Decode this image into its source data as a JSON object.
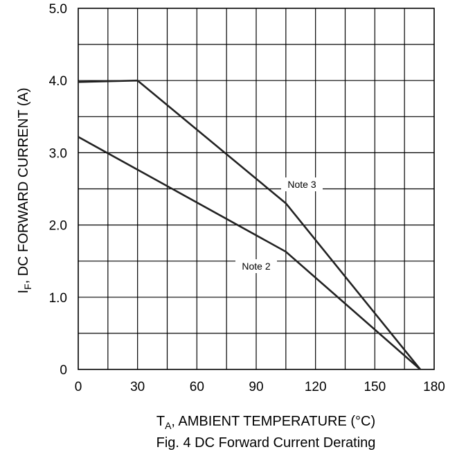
{
  "chart_data": {
    "type": "line",
    "title": "",
    "xlabel": "T_A, AMBIENT  TEMPERATURE (°C)",
    "ylabel": "I_F, DC FORWARD CURRENT (A)",
    "xlim": [
      0,
      180
    ],
    "ylim": [
      0,
      5
    ],
    "x_ticks": [
      0,
      30,
      60,
      90,
      120,
      150,
      180
    ],
    "x_tick_labels": [
      "0",
      "30",
      "60",
      "90",
      "120",
      "150",
      "180"
    ],
    "x_minor_grid_step": 15,
    "y_ticks": [
      0,
      1,
      2,
      3,
      4,
      5
    ],
    "y_tick_labels": [
      "0",
      "1.0",
      "2.0",
      "3.0",
      "4.0",
      "5.0"
    ],
    "y_minor_grid_step": 0.5,
    "grid": true,
    "legend": "none",
    "series": [
      {
        "name": "Note 3",
        "x": [
          0,
          30,
          105,
          173
        ],
        "y": [
          3.98,
          4.0,
          2.3,
          0.0
        ]
      },
      {
        "name": "Note 2",
        "x": [
          0,
          105,
          173
        ],
        "y": [
          3.22,
          1.63,
          0.0
        ]
      }
    ],
    "caption": "Fig. 4  DC Forward Current Derating"
  },
  "labels": {
    "ylabel_main": "I",
    "ylabel_sub": "F",
    "ylabel_rest": ", DC FORWARD CURRENT (A)",
    "xlabel_main": "T",
    "xlabel_sub": "A",
    "xlabel_rest": ", AMBIENT  TEMPERATURE (°C)"
  },
  "colors": {
    "line": "#222222",
    "grid": "#000000",
    "background": "#ffffff"
  }
}
